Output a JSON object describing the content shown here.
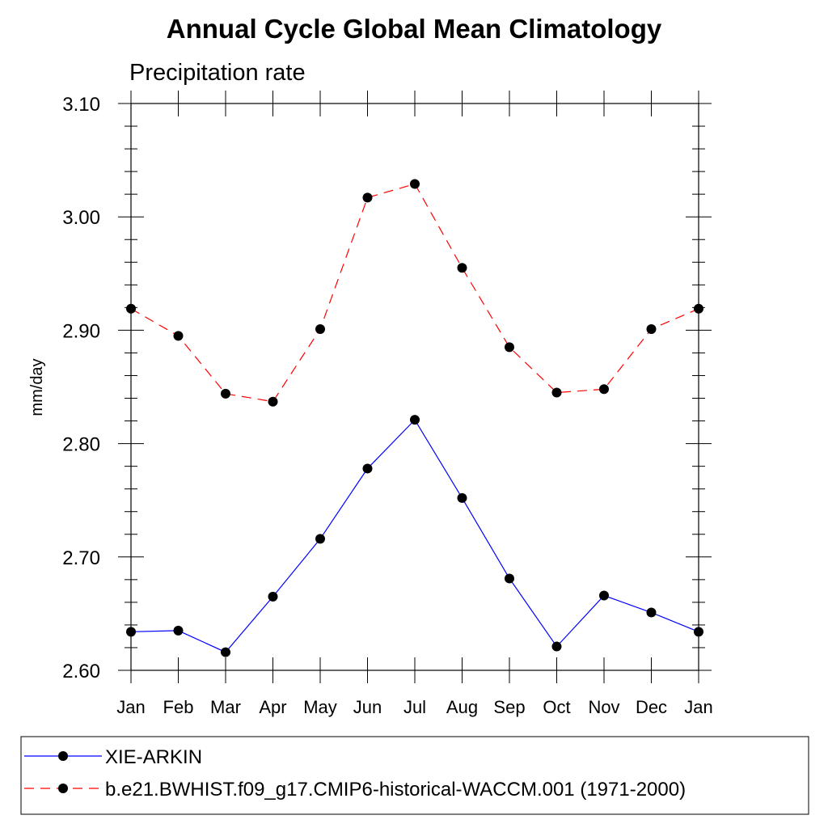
{
  "chart_data": {
    "type": "line",
    "title": "Annual Cycle Global Mean Climatology",
    "subtitle": "Precipitation rate",
    "ylabel": "mm/day",
    "xlabel": "",
    "ylim": [
      2.6,
      3.1
    ],
    "y_ticks": [
      "2.60",
      "2.70",
      "2.80",
      "2.90",
      "3.00",
      "3.10"
    ],
    "y_tick_values": [
      2.6,
      2.7,
      2.8,
      2.9,
      3.0,
      3.1
    ],
    "categories": [
      "Jan",
      "Feb",
      "Mar",
      "Apr",
      "May",
      "Jun",
      "Jul",
      "Aug",
      "Sep",
      "Oct",
      "Nov",
      "Dec",
      "Jan"
    ],
    "grid": false,
    "legend_position": "bottom",
    "series": [
      {
        "name": "XIE-ARKIN",
        "color": "#0000ff",
        "line_style": "solid",
        "marker": "filled-circle",
        "values": [
          2.634,
          2.635,
          2.616,
          2.665,
          2.716,
          2.778,
          2.821,
          2.752,
          2.681,
          2.621,
          2.666,
          2.651,
          2.634
        ]
      },
      {
        "name": "b.e21.BWHIST.f09_g17.CMIP6-historical-WACCM.001 (1971-2000)",
        "color": "#ff0000",
        "line_style": "dashed",
        "marker": "filled-circle",
        "values": [
          2.919,
          2.895,
          2.844,
          2.837,
          2.901,
          3.017,
          3.029,
          2.955,
          2.885,
          2.845,
          2.848,
          2.901,
          2.919
        ]
      }
    ]
  }
}
